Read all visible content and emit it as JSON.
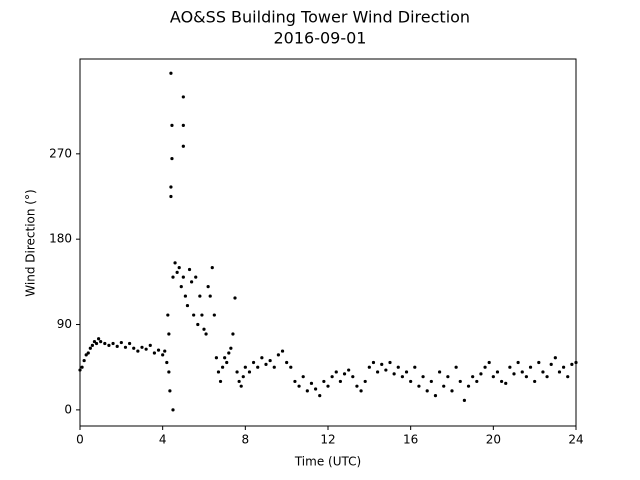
{
  "chart_data": {
    "type": "scatter",
    "title": "AO&SS Building Tower Wind Direction",
    "subtitle": "2016-09-01",
    "x_label": "Time (UTC)",
    "y_label": "Wind Direction (°)",
    "xlim": [
      0,
      24
    ],
    "xticks": [
      0,
      4,
      8,
      12,
      16,
      20,
      24
    ],
    "ylim": [
      -17,
      370
    ],
    "yticks": [
      0,
      90,
      180,
      270
    ],
    "series": [
      {
        "color": "#000000",
        "x": [
          0.0,
          0.1,
          0.2,
          0.3,
          0.4,
          0.5,
          0.6,
          0.7,
          0.8,
          0.9,
          1.0,
          1.2,
          1.4,
          1.6,
          1.8,
          2.0,
          2.2,
          2.4,
          2.6,
          2.8,
          3.0,
          3.2,
          3.4,
          3.6,
          3.8,
          4.0,
          4.1,
          4.2,
          4.25,
          4.3,
          4.3,
          4.35,
          4.4,
          4.4,
          4.4,
          4.45,
          4.45,
          4.5,
          4.5,
          4.6,
          4.7,
          4.8,
          4.9,
          5.0,
          5.0,
          5.0,
          5.0,
          5.1,
          5.2,
          5.3,
          5.4,
          5.5,
          5.6,
          5.7,
          5.8,
          5.9,
          6.0,
          6.1,
          6.2,
          6.3,
          6.4,
          6.5,
          6.6,
          6.7,
          6.8,
          6.9,
          7.0,
          7.1,
          7.2,
          7.3,
          7.4,
          7.5,
          7.6,
          7.7,
          7.8,
          7.9,
          8.0,
          8.2,
          8.4,
          8.6,
          8.8,
          9.0,
          9.2,
          9.4,
          9.6,
          9.8,
          10.0,
          10.2,
          10.4,
          10.6,
          10.8,
          11.0,
          11.2,
          11.4,
          11.6,
          11.8,
          12.0,
          12.2,
          12.4,
          12.6,
          12.8,
          13.0,
          13.2,
          13.4,
          13.6,
          13.8,
          14.0,
          14.2,
          14.4,
          14.6,
          14.8,
          15.0,
          15.2,
          15.4,
          15.6,
          15.8,
          16.0,
          16.2,
          16.4,
          16.6,
          16.8,
          17.0,
          17.2,
          17.4,
          17.6,
          17.8,
          18.0,
          18.2,
          18.4,
          18.6,
          18.8,
          19.0,
          19.2,
          19.4,
          19.6,
          19.8,
          20.0,
          20.2,
          20.4,
          20.6,
          20.8,
          21.0,
          21.2,
          21.4,
          21.6,
          21.8,
          22.0,
          22.2,
          22.4,
          22.6,
          22.8,
          23.0,
          23.2,
          23.4,
          23.6,
          23.8,
          24.0
        ],
        "values": [
          42,
          45,
          52,
          58,
          60,
          65,
          68,
          72,
          70,
          75,
          72,
          70,
          68,
          70,
          67,
          71,
          66,
          70,
          65,
          62,
          66,
          64,
          68,
          60,
          63,
          58,
          62,
          50,
          100,
          40,
          80,
          20,
          355,
          235,
          225,
          300,
          265,
          0,
          140,
          155,
          145,
          150,
          130,
          330,
          300,
          278,
          140,
          120,
          110,
          148,
          135,
          100,
          140,
          90,
          120,
          100,
          85,
          80,
          130,
          120,
          150,
          100,
          55,
          40,
          30,
          45,
          55,
          50,
          60,
          65,
          80,
          118,
          40,
          30,
          25,
          35,
          45,
          40,
          50,
          45,
          55,
          48,
          52,
          45,
          58,
          62,
          50,
          45,
          30,
          25,
          35,
          20,
          28,
          22,
          15,
          30,
          25,
          35,
          40,
          30,
          38,
          42,
          35,
          25,
          20,
          30,
          45,
          50,
          40,
          48,
          42,
          50,
          38,
          45,
          35,
          40,
          30,
          45,
          25,
          35,
          20,
          30,
          15,
          40,
          25,
          35,
          20,
          45,
          30,
          10,
          25,
          35,
          30,
          38,
          45,
          50,
          35,
          40,
          30,
          28,
          45,
          38,
          50,
          40,
          35,
          45,
          30,
          50,
          40,
          35,
          48,
          55,
          40,
          45,
          35,
          48,
          50
        ]
      }
    ]
  }
}
